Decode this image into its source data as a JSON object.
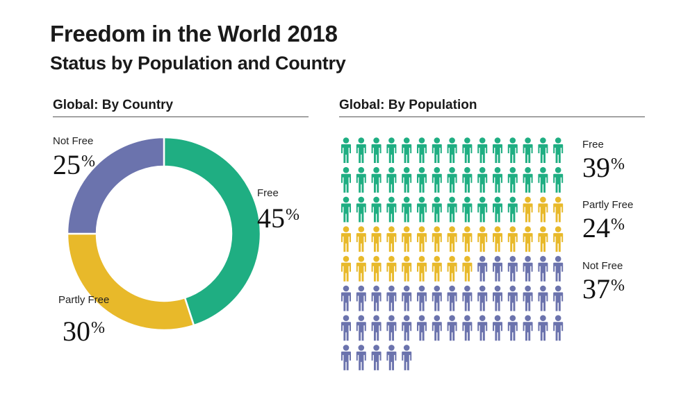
{
  "header": {
    "title": "Freedom in the World 2018",
    "subtitle": "Status by Population and Country"
  },
  "colors": {
    "free": "#1fae82",
    "partly_free": "#e8b92a",
    "not_free": "#6b73ad"
  },
  "chart_data": [
    {
      "type": "pie",
      "donut": true,
      "title": "Global: By Country",
      "categories": [
        "Free",
        "Partly Free",
        "Not Free"
      ],
      "values": [
        45,
        30,
        25
      ],
      "unit": "%",
      "labels": {
        "free": {
          "name": "Free",
          "value": "45",
          "unit": "%"
        },
        "partly_free": {
          "name": "Partly Free",
          "value": "30",
          "unit": "%"
        },
        "not_free": {
          "name": "Not Free",
          "value": "25",
          "unit": "%"
        }
      }
    },
    {
      "type": "pictograph",
      "title": "Global: By Population",
      "icon": "person-icon",
      "categories": [
        "Free",
        "Partly Free",
        "Not Free"
      ],
      "values": [
        39,
        24,
        37
      ],
      "unit": "%",
      "icon_counts": {
        "free": 42,
        "partly_free": 27,
        "not_free": 41
      },
      "labels": {
        "free": {
          "name": "Free",
          "value": "39",
          "unit": "%"
        },
        "partly_free": {
          "name": "Partly Free",
          "value": "24",
          "unit": "%"
        },
        "not_free": {
          "name": "Not Free",
          "value": "37",
          "unit": "%"
        }
      }
    }
  ]
}
